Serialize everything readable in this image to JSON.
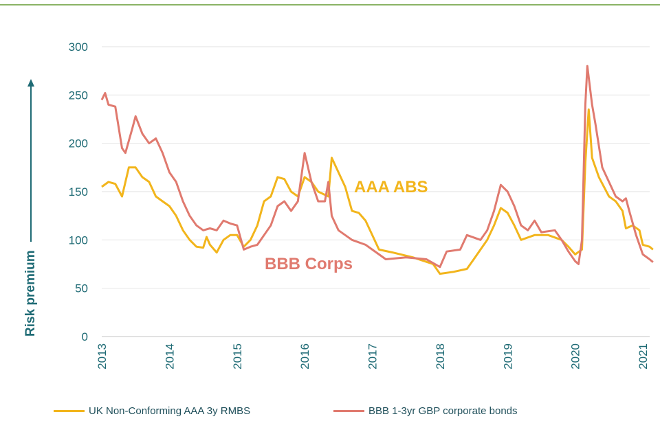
{
  "chart_data": {
    "type": "line",
    "title": "",
    "xlabel": "",
    "ylabel": "Risk premium",
    "ylim": [
      0,
      300
    ],
    "xlim": [
      2013,
      2021.15
    ],
    "yticks": [
      "0",
      "50",
      "100",
      "150",
      "200",
      "250",
      "300"
    ],
    "xticks": [
      "2013",
      "2014",
      "2015",
      "2016",
      "2017",
      "2018",
      "2019",
      "2020",
      "2021"
    ],
    "grid": true,
    "legend_placement": "bottom",
    "annotations": [
      {
        "text": "AAA ABS",
        "color": "#f2b51c"
      },
      {
        "text": "BBB Corps",
        "color": "#e07a6f"
      }
    ],
    "series": [
      {
        "name": "UK Non-Conforming AAA 3y RMBS",
        "color": "#f2b51c",
        "x": [
          2013.0,
          2013.1,
          2013.2,
          2013.3,
          2013.4,
          2013.5,
          2013.6,
          2013.7,
          2013.8,
          2013.9,
          2014.0,
          2014.1,
          2014.2,
          2014.3,
          2014.4,
          2014.5,
          2014.55,
          2014.6,
          2014.7,
          2014.8,
          2014.9,
          2015.0,
          2015.1,
          2015.2,
          2015.3,
          2015.4,
          2015.5,
          2015.6,
          2015.7,
          2015.8,
          2015.9,
          2016.0,
          2016.1,
          2016.2,
          2016.35,
          2016.4,
          2016.5,
          2016.6,
          2016.7,
          2016.8,
          2016.9,
          2017.0,
          2017.1,
          2017.3,
          2017.6,
          2017.9,
          2018.0,
          2018.2,
          2018.4,
          2018.5,
          2018.6,
          2018.7,
          2018.8,
          2018.9,
          2019.0,
          2019.1,
          2019.2,
          2019.4,
          2019.6,
          2019.8,
          2019.9,
          2020.0,
          2020.1,
          2020.15,
          2020.2,
          2020.25,
          2020.35,
          2020.5,
          2020.6,
          2020.7,
          2020.75,
          2020.85,
          2020.95,
          2021.0,
          2021.1,
          2021.15
        ],
        "y": [
          155,
          160,
          158,
          145,
          175,
          175,
          165,
          160,
          145,
          140,
          135,
          125,
          110,
          100,
          93,
          92,
          103,
          95,
          87,
          100,
          105,
          105,
          93,
          100,
          115,
          140,
          145,
          165,
          163,
          150,
          145,
          165,
          160,
          150,
          145,
          185,
          170,
          155,
          130,
          128,
          120,
          105,
          90,
          87,
          82,
          75,
          65,
          67,
          70,
          80,
          90,
          100,
          115,
          133,
          128,
          115,
          100,
          105,
          105,
          100,
          93,
          85,
          90,
          180,
          235,
          185,
          165,
          145,
          140,
          130,
          112,
          115,
          110,
          95,
          93,
          90
        ]
      },
      {
        "name": "BBB 1-3yr GBP corporate bonds",
        "color": "#e07a6f",
        "x": [
          2013.0,
          2013.05,
          2013.1,
          2013.2,
          2013.3,
          2013.35,
          2013.45,
          2013.5,
          2013.6,
          2013.7,
          2013.8,
          2013.9,
          2014.0,
          2014.1,
          2014.2,
          2014.3,
          2014.4,
          2014.5,
          2014.6,
          2014.7,
          2014.8,
          2014.9,
          2015.0,
          2015.1,
          2015.2,
          2015.3,
          2015.4,
          2015.5,
          2015.6,
          2015.7,
          2015.8,
          2015.9,
          2016.0,
          2016.1,
          2016.2,
          2016.3,
          2016.35,
          2016.4,
          2016.5,
          2016.7,
          2016.9,
          2017.0,
          2017.2,
          2017.5,
          2017.8,
          2018.0,
          2018.1,
          2018.3,
          2018.4,
          2018.6,
          2018.7,
          2018.8,
          2018.9,
          2019.0,
          2019.1,
          2019.2,
          2019.3,
          2019.4,
          2019.5,
          2019.7,
          2019.8,
          2019.9,
          2020.0,
          2020.05,
          2020.1,
          2020.15,
          2020.18,
          2020.25,
          2020.3,
          2020.4,
          2020.5,
          2020.6,
          2020.7,
          2020.75,
          2020.8,
          2020.9,
          2021.0,
          2021.1,
          2021.15
        ],
        "y": [
          245,
          252,
          240,
          238,
          195,
          190,
          215,
          228,
          210,
          200,
          205,
          190,
          170,
          160,
          140,
          125,
          115,
          110,
          112,
          110,
          120,
          117,
          115,
          90,
          93,
          95,
          105,
          115,
          135,
          140,
          130,
          140,
          190,
          160,
          140,
          140,
          160,
          125,
          110,
          100,
          95,
          90,
          80,
          82,
          80,
          72,
          88,
          90,
          105,
          100,
          110,
          130,
          157,
          150,
          135,
          115,
          110,
          120,
          108,
          110,
          100,
          88,
          78,
          75,
          100,
          240,
          280,
          240,
          220,
          175,
          160,
          145,
          140,
          143,
          130,
          105,
          85,
          80,
          77
        ]
      }
    ]
  }
}
